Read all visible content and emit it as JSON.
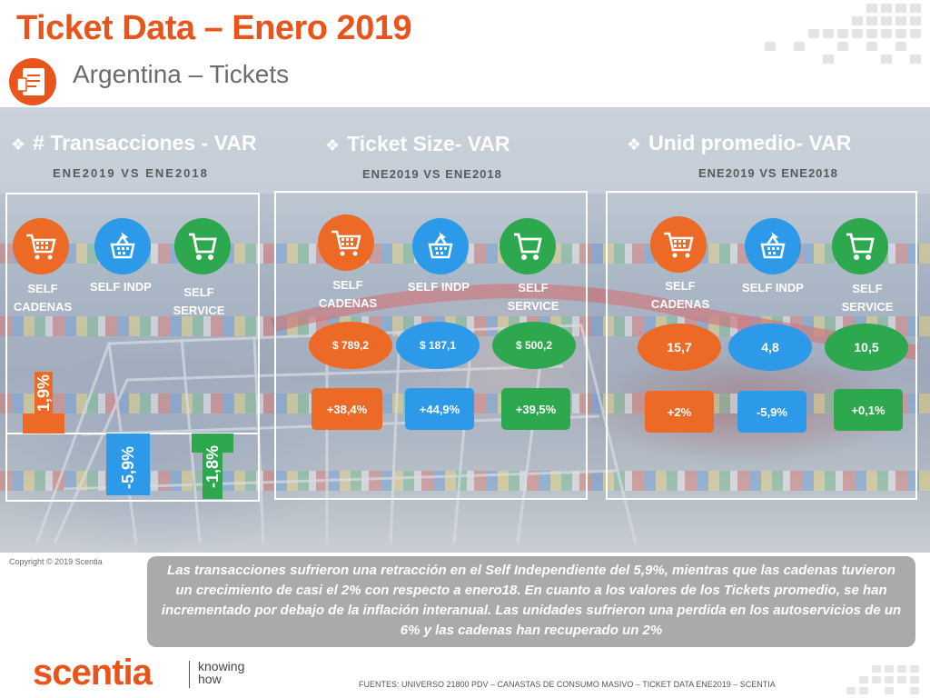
{
  "header": {
    "title": "Ticket Data – Enero 2019",
    "subtitle": "Argentina – Tickets"
  },
  "sections": {
    "transacciones": {
      "title": "# Transacciones - VAR",
      "subtitle": "ENE2019 VS ENE2018",
      "categories": [
        "SELF CADENAS",
        "SELF INDP",
        "SELF SERVICE"
      ]
    },
    "ticket_size": {
      "title": "Ticket Size- VAR",
      "subtitle": "ENE2019 VS ENE2018",
      "categories": [
        "SELF CADENAS",
        "SELF INDP",
        "SELF SERVICE"
      ],
      "values": [
        "$ 789,2",
        "$ 187,1",
        "$ 500,2"
      ],
      "vars": [
        "+38,4%",
        "+44,9%",
        "+39,5%"
      ]
    },
    "unid_promedio": {
      "title": "Unid promedio- VAR",
      "subtitle": "ENE2019 VS ENE2018",
      "categories": [
        "SELF CADENAS",
        "SELF INDP",
        "SELF SERVICE"
      ],
      "values": [
        "15,7",
        "4,8",
        "10,5"
      ],
      "vars": [
        "+2%",
        "-5,9%",
        "+0,1%"
      ]
    }
  },
  "chart_data": {
    "type": "bar",
    "title": "",
    "categories": [
      "SELF CADENAS",
      "SELF INDP",
      "SELF SERVICE"
    ],
    "values": [
      1.9,
      -5.9,
      -1.8
    ],
    "value_labels": [
      "1,9%",
      "-5,9%",
      "-1,8%"
    ],
    "colors": [
      "#ec6a26",
      "#2c9ae8",
      "#2ea84e"
    ],
    "ylim": [
      -6,
      6
    ]
  },
  "footer": {
    "copyright": "Copyright © 2019 Scentia",
    "summary": "Las transacciones sufrieron una retracción en el Self Independiente del 5,9%, mientras que las cadenas tuvieron un crecimiento de casi el 2% con respecto a enero18. En cuanto a los valores de los Tickets promedio, se han incrementado por debajo de la inflación interanual. Las unidades sufrieron una perdida en los autoservicios de un 6% y las cadenas han recuperado un 2%",
    "logo": "scentia",
    "tagline_1": "knowing",
    "tagline_2": "how",
    "sources": "FUENTES: UNIVERSO 21800 PDV – CANASTAS DE CONSUMO MASIVO – TICKET DATA ENE2019 – SCENTIA"
  },
  "icons": {
    "cadenas": "shopping-cart-icon",
    "indp": "shopping-basket-icon",
    "service": "shopping-trolley-icon",
    "ticket": "receipt-icon"
  }
}
